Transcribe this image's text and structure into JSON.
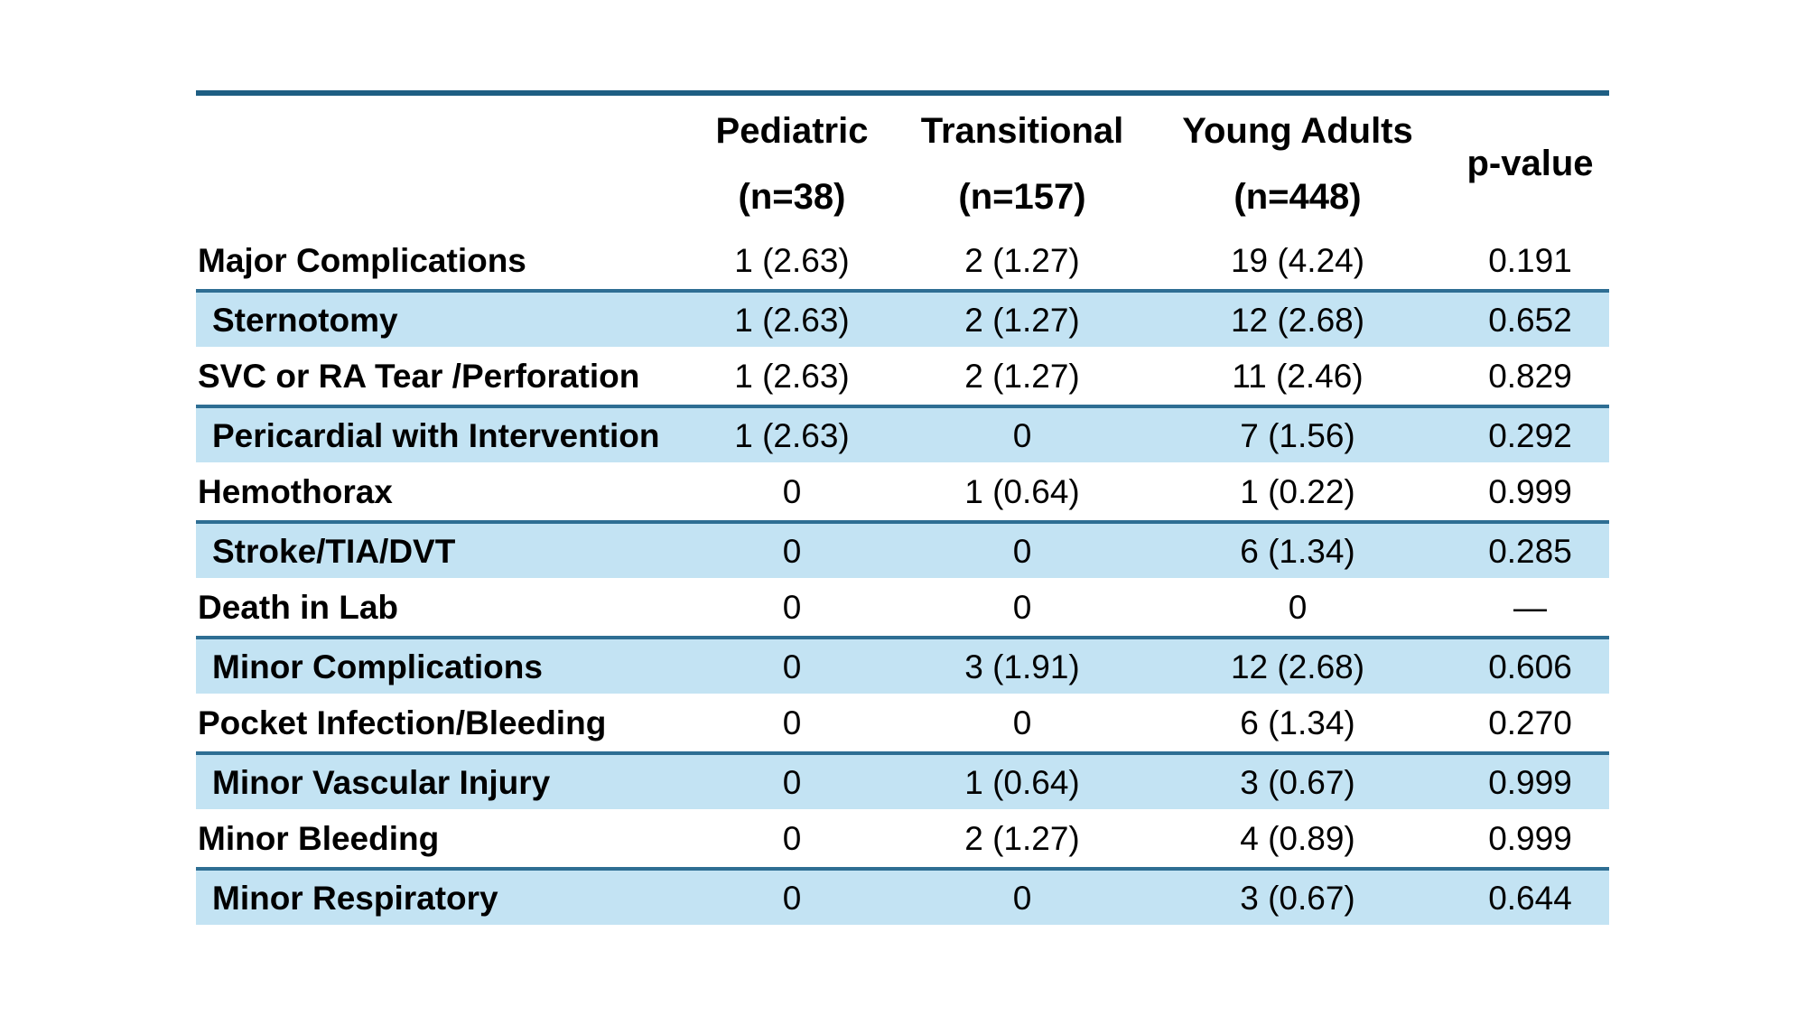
{
  "table": {
    "colors": {
      "rule": "#1E5E83",
      "row_border": "#2E6E93",
      "shaded_bg": "#C3E3F3"
    },
    "columns": [
      {
        "label": "Pediatric",
        "sub": "(n=38)"
      },
      {
        "label": "Transitional",
        "sub": "(n=157)"
      },
      {
        "label": "Young Adults",
        "sub": "(n=448)"
      },
      {
        "label": "p-value",
        "sub": ""
      }
    ],
    "rows": [
      {
        "label": "Major Complications",
        "shaded": false,
        "values": [
          "1 (2.63)",
          "2 (1.27)",
          "19 (4.24)",
          "0.191"
        ]
      },
      {
        "label": "Sternotomy",
        "shaded": true,
        "values": [
          "1 (2.63)",
          "2 (1.27)",
          "12 (2.68)",
          "0.652"
        ]
      },
      {
        "label": "SVC or RA Tear /Perforation",
        "shaded": false,
        "values": [
          "1 (2.63)",
          "2 (1.27)",
          "11 (2.46)",
          "0.829"
        ]
      },
      {
        "label": "Pericardial with Intervention",
        "shaded": true,
        "values": [
          "1 (2.63)",
          "0",
          "7 (1.56)",
          "0.292"
        ]
      },
      {
        "label": "Hemothorax",
        "shaded": false,
        "values": [
          "0",
          "1 (0.64)",
          "1 (0.22)",
          "0.999"
        ]
      },
      {
        "label": "Stroke/TIA/DVT",
        "shaded": true,
        "values": [
          "0",
          "0",
          "6 (1.34)",
          "0.285"
        ]
      },
      {
        "label": "Death in Lab",
        "shaded": false,
        "values": [
          "0",
          "0",
          "0",
          "—"
        ]
      },
      {
        "label": "Minor Complications",
        "shaded": true,
        "values": [
          "0",
          "3 (1.91)",
          "12 (2.68)",
          "0.606"
        ]
      },
      {
        "label": "Pocket Infection/Bleeding",
        "shaded": false,
        "values": [
          "0",
          "0",
          "6 (1.34)",
          "0.270"
        ]
      },
      {
        "label": "Minor Vascular Injury",
        "shaded": true,
        "values": [
          "0",
          "1 (0.64)",
          "3 (0.67)",
          "0.999"
        ]
      },
      {
        "label": "Minor Bleeding",
        "shaded": false,
        "values": [
          "0",
          "2 (1.27)",
          "4 (0.89)",
          "0.999"
        ]
      },
      {
        "label": "Minor Respiratory",
        "shaded": true,
        "values": [
          "0",
          "0",
          "3 (0.67)",
          "0.644"
        ]
      }
    ]
  }
}
